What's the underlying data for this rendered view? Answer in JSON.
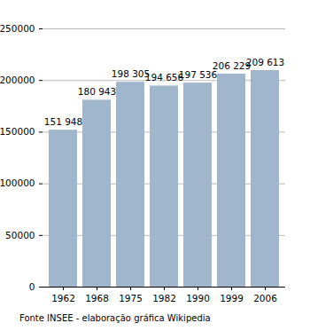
{
  "chart_data": {
    "type": "bar",
    "categories": [
      "1962",
      "1968",
      "1975",
      "1982",
      "1990",
      "1999",
      "2006"
    ],
    "values": [
      151948,
      180943,
      198305,
      194656,
      197536,
      206229,
      209613
    ],
    "value_labels": [
      "151 948",
      "180 943",
      "198 305",
      "194 656",
      "197 536",
      "206 229",
      "209 613"
    ],
    "color": "#9fb6cd",
    "ylim": [
      0,
      250000
    ],
    "yticks": [
      0,
      50000,
      100000,
      150000,
      200000,
      250000
    ],
    "grid": true,
    "data_labels": true,
    "caption": "Fonte INSEE - elaboração gráfica Wikipedia"
  }
}
